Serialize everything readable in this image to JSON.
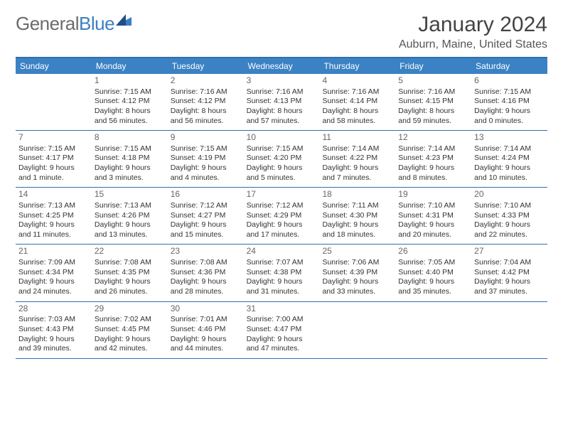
{
  "logo": {
    "text1": "General",
    "text2": "Blue"
  },
  "title": "January 2024",
  "location": "Auburn, Maine, United States",
  "colors": {
    "header_bg": "#3b82c4",
    "border": "#2f6fb0",
    "logo_gray": "#6b6b6b",
    "logo_blue": "#3b7fc4"
  },
  "weekdays": [
    "Sunday",
    "Monday",
    "Tuesday",
    "Wednesday",
    "Thursday",
    "Friday",
    "Saturday"
  ],
  "weeks": [
    [
      {
        "n": "",
        "sr": "",
        "ss": "",
        "dl": ""
      },
      {
        "n": "1",
        "sr": "Sunrise: 7:15 AM",
        "ss": "Sunset: 4:12 PM",
        "dl": "Daylight: 8 hours and 56 minutes."
      },
      {
        "n": "2",
        "sr": "Sunrise: 7:16 AM",
        "ss": "Sunset: 4:12 PM",
        "dl": "Daylight: 8 hours and 56 minutes."
      },
      {
        "n": "3",
        "sr": "Sunrise: 7:16 AM",
        "ss": "Sunset: 4:13 PM",
        "dl": "Daylight: 8 hours and 57 minutes."
      },
      {
        "n": "4",
        "sr": "Sunrise: 7:16 AM",
        "ss": "Sunset: 4:14 PM",
        "dl": "Daylight: 8 hours and 58 minutes."
      },
      {
        "n": "5",
        "sr": "Sunrise: 7:16 AM",
        "ss": "Sunset: 4:15 PM",
        "dl": "Daylight: 8 hours and 59 minutes."
      },
      {
        "n": "6",
        "sr": "Sunrise: 7:15 AM",
        "ss": "Sunset: 4:16 PM",
        "dl": "Daylight: 9 hours and 0 minutes."
      }
    ],
    [
      {
        "n": "7",
        "sr": "Sunrise: 7:15 AM",
        "ss": "Sunset: 4:17 PM",
        "dl": "Daylight: 9 hours and 1 minute."
      },
      {
        "n": "8",
        "sr": "Sunrise: 7:15 AM",
        "ss": "Sunset: 4:18 PM",
        "dl": "Daylight: 9 hours and 3 minutes."
      },
      {
        "n": "9",
        "sr": "Sunrise: 7:15 AM",
        "ss": "Sunset: 4:19 PM",
        "dl": "Daylight: 9 hours and 4 minutes."
      },
      {
        "n": "10",
        "sr": "Sunrise: 7:15 AM",
        "ss": "Sunset: 4:20 PM",
        "dl": "Daylight: 9 hours and 5 minutes."
      },
      {
        "n": "11",
        "sr": "Sunrise: 7:14 AM",
        "ss": "Sunset: 4:22 PM",
        "dl": "Daylight: 9 hours and 7 minutes."
      },
      {
        "n": "12",
        "sr": "Sunrise: 7:14 AM",
        "ss": "Sunset: 4:23 PM",
        "dl": "Daylight: 9 hours and 8 minutes."
      },
      {
        "n": "13",
        "sr": "Sunrise: 7:14 AM",
        "ss": "Sunset: 4:24 PM",
        "dl": "Daylight: 9 hours and 10 minutes."
      }
    ],
    [
      {
        "n": "14",
        "sr": "Sunrise: 7:13 AM",
        "ss": "Sunset: 4:25 PM",
        "dl": "Daylight: 9 hours and 11 minutes."
      },
      {
        "n": "15",
        "sr": "Sunrise: 7:13 AM",
        "ss": "Sunset: 4:26 PM",
        "dl": "Daylight: 9 hours and 13 minutes."
      },
      {
        "n": "16",
        "sr": "Sunrise: 7:12 AM",
        "ss": "Sunset: 4:27 PM",
        "dl": "Daylight: 9 hours and 15 minutes."
      },
      {
        "n": "17",
        "sr": "Sunrise: 7:12 AM",
        "ss": "Sunset: 4:29 PM",
        "dl": "Daylight: 9 hours and 17 minutes."
      },
      {
        "n": "18",
        "sr": "Sunrise: 7:11 AM",
        "ss": "Sunset: 4:30 PM",
        "dl": "Daylight: 9 hours and 18 minutes."
      },
      {
        "n": "19",
        "sr": "Sunrise: 7:10 AM",
        "ss": "Sunset: 4:31 PM",
        "dl": "Daylight: 9 hours and 20 minutes."
      },
      {
        "n": "20",
        "sr": "Sunrise: 7:10 AM",
        "ss": "Sunset: 4:33 PM",
        "dl": "Daylight: 9 hours and 22 minutes."
      }
    ],
    [
      {
        "n": "21",
        "sr": "Sunrise: 7:09 AM",
        "ss": "Sunset: 4:34 PM",
        "dl": "Daylight: 9 hours and 24 minutes."
      },
      {
        "n": "22",
        "sr": "Sunrise: 7:08 AM",
        "ss": "Sunset: 4:35 PM",
        "dl": "Daylight: 9 hours and 26 minutes."
      },
      {
        "n": "23",
        "sr": "Sunrise: 7:08 AM",
        "ss": "Sunset: 4:36 PM",
        "dl": "Daylight: 9 hours and 28 minutes."
      },
      {
        "n": "24",
        "sr": "Sunrise: 7:07 AM",
        "ss": "Sunset: 4:38 PM",
        "dl": "Daylight: 9 hours and 31 minutes."
      },
      {
        "n": "25",
        "sr": "Sunrise: 7:06 AM",
        "ss": "Sunset: 4:39 PM",
        "dl": "Daylight: 9 hours and 33 minutes."
      },
      {
        "n": "26",
        "sr": "Sunrise: 7:05 AM",
        "ss": "Sunset: 4:40 PM",
        "dl": "Daylight: 9 hours and 35 minutes."
      },
      {
        "n": "27",
        "sr": "Sunrise: 7:04 AM",
        "ss": "Sunset: 4:42 PM",
        "dl": "Daylight: 9 hours and 37 minutes."
      }
    ],
    [
      {
        "n": "28",
        "sr": "Sunrise: 7:03 AM",
        "ss": "Sunset: 4:43 PM",
        "dl": "Daylight: 9 hours and 39 minutes."
      },
      {
        "n": "29",
        "sr": "Sunrise: 7:02 AM",
        "ss": "Sunset: 4:45 PM",
        "dl": "Daylight: 9 hours and 42 minutes."
      },
      {
        "n": "30",
        "sr": "Sunrise: 7:01 AM",
        "ss": "Sunset: 4:46 PM",
        "dl": "Daylight: 9 hours and 44 minutes."
      },
      {
        "n": "31",
        "sr": "Sunrise: 7:00 AM",
        "ss": "Sunset: 4:47 PM",
        "dl": "Daylight: 9 hours and 47 minutes."
      },
      {
        "n": "",
        "sr": "",
        "ss": "",
        "dl": ""
      },
      {
        "n": "",
        "sr": "",
        "ss": "",
        "dl": ""
      },
      {
        "n": "",
        "sr": "",
        "ss": "",
        "dl": ""
      }
    ]
  ]
}
